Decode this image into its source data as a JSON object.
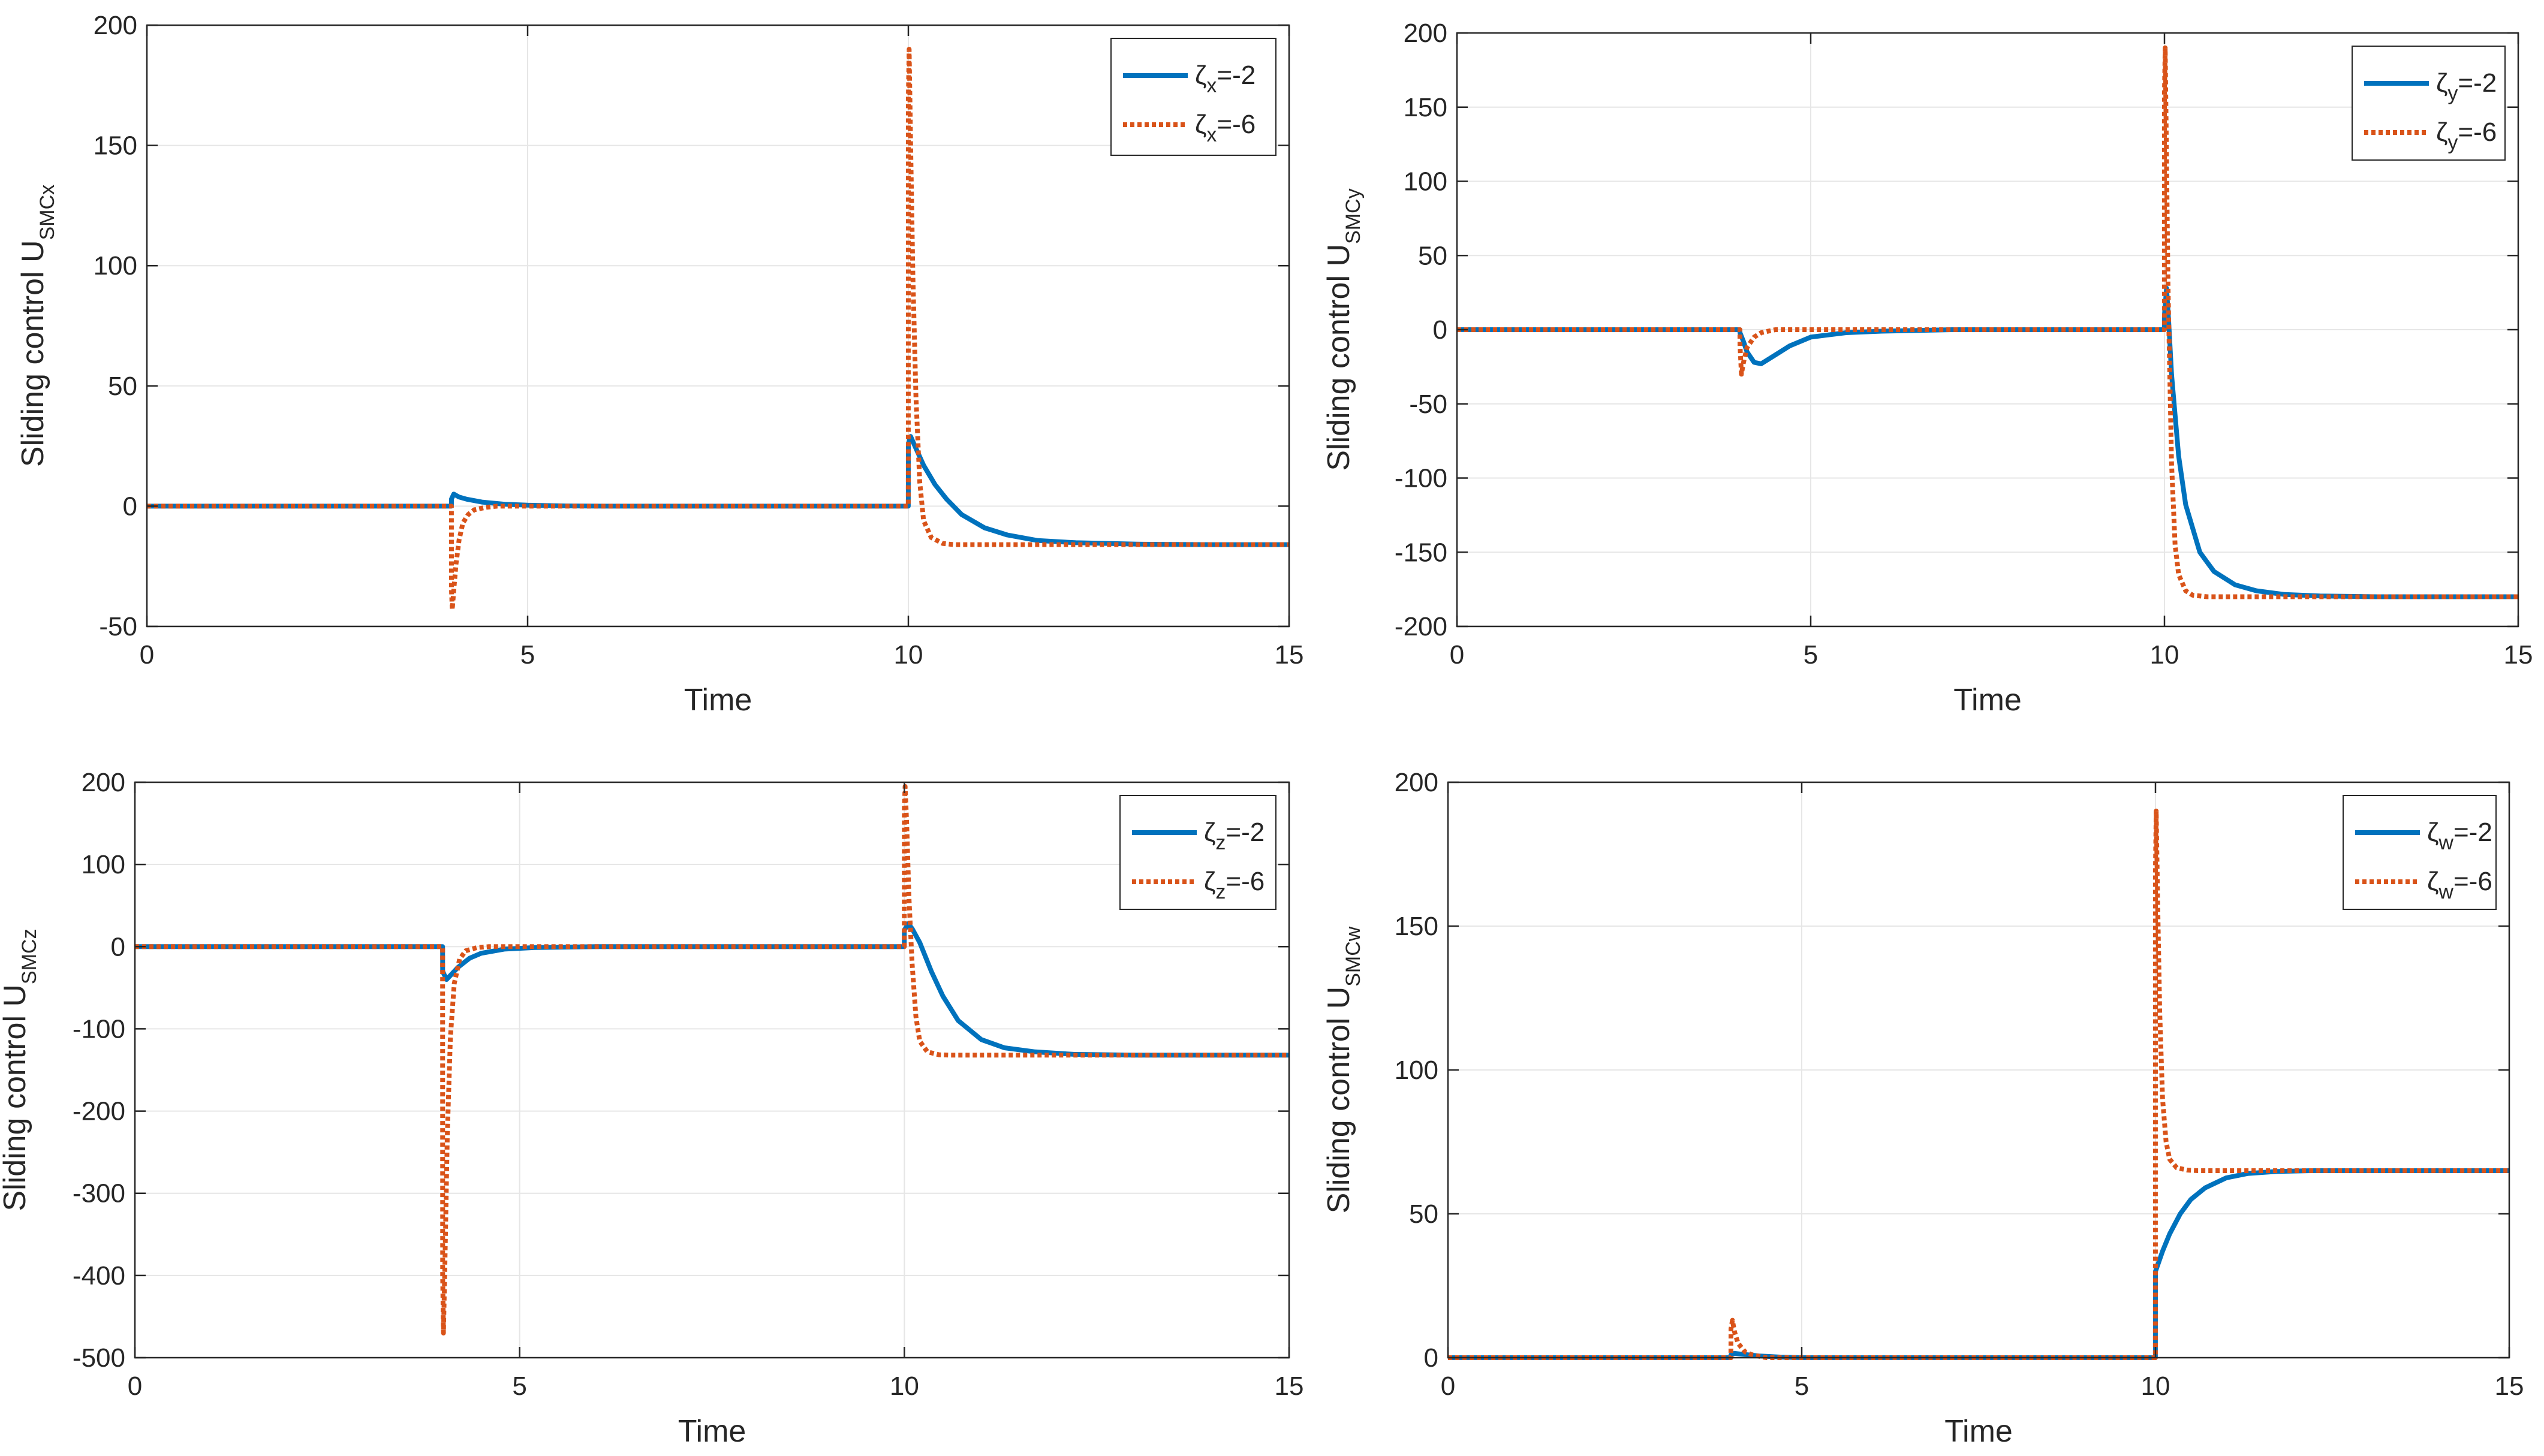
{
  "colors": {
    "series1": "#0072BD",
    "series2": "#D95319",
    "grid": "#e6e6e6",
    "axis": "#262626"
  },
  "chart_data": [
    {
      "type": "line",
      "xlabel": "Time",
      "ylabel": {
        "main": "Sliding control U",
        "sub": "SMCx"
      },
      "xlim": [
        0,
        15
      ],
      "ylim": [
        -50,
        200
      ],
      "xticks": [
        0,
        5,
        10,
        15
      ],
      "yticks": [
        -50,
        0,
        50,
        100,
        150,
        200
      ],
      "legend_position": "top-right",
      "series": [
        {
          "name": "ζx=-2",
          "legend": {
            "symbol": "ζ",
            "sub": "x",
            "text": "=-2"
          },
          "style": "solid",
          "x": [
            0,
            3.999,
            4.0,
            4.03,
            4.1,
            4.2,
            4.4,
            4.7,
            5.0,
            5.5,
            6,
            7,
            8,
            9.999,
            10.0,
            10.03,
            10.1,
            10.2,
            10.35,
            10.5,
            10.7,
            11.0,
            11.3,
            11.7,
            12.2,
            13,
            14,
            15
          ],
          "values": [
            0,
            0,
            3,
            5,
            3.8,
            2.9,
            1.7,
            0.8,
            0.4,
            0.1,
            0,
            0,
            0,
            0,
            26,
            29,
            24,
            17,
            9,
            3,
            -3.5,
            -9,
            -12,
            -14.3,
            -15.2,
            -15.8,
            -16,
            -16
          ]
        },
        {
          "name": "ζx=-6",
          "legend": {
            "symbol": "ζ",
            "sub": "x",
            "text": "=-6"
          },
          "style": "dotted",
          "x": [
            0,
            3.999,
            4.0,
            4.01,
            4.03,
            4.06,
            4.1,
            4.15,
            4.22,
            4.3,
            4.45,
            4.6,
            5.0,
            6,
            8,
            9.999,
            10.0,
            10.01,
            10.03,
            10.06,
            10.1,
            10.15,
            10.2,
            10.3,
            10.45,
            10.6,
            11,
            12,
            15
          ],
          "values": [
            0,
            0,
            -35,
            -43,
            -35,
            -24,
            -14,
            -7,
            -3.5,
            -1.5,
            -0.5,
            0,
            0,
            0,
            0,
            0,
            170,
            190,
            150,
            95,
            45,
            10,
            -6,
            -13,
            -15.5,
            -16,
            -16,
            -16,
            -16
          ]
        }
      ]
    },
    {
      "type": "line",
      "xlabel": "Time",
      "ylabel": {
        "main": "Sliding control U",
        "sub": "SMCy"
      },
      "xlim": [
        0,
        15
      ],
      "ylim": [
        -200,
        200
      ],
      "xticks": [
        0,
        5,
        10,
        15
      ],
      "yticks": [
        -200,
        -150,
        -100,
        -50,
        0,
        50,
        100,
        150,
        200
      ],
      "legend_position": "top-right",
      "series": [
        {
          "name": "ζy=-2",
          "legend": {
            "symbol": "ζ",
            "sub": "y",
            "text": "=-2"
          },
          "style": "solid",
          "x": [
            0,
            3.999,
            4.0,
            4.05,
            4.1,
            4.2,
            4.3,
            4.5,
            4.7,
            5.0,
            5.5,
            6,
            7,
            9.999,
            10.0,
            10.03,
            10.06,
            10.1,
            10.2,
            10.3,
            10.5,
            10.7,
            11.0,
            11.3,
            11.7,
            12.2,
            13,
            14,
            15
          ],
          "values": [
            0,
            0,
            -2,
            -8,
            -15,
            -22,
            -23,
            -17,
            -11,
            -5,
            -2,
            -1,
            0,
            0,
            10,
            28,
            5,
            -30,
            -85,
            -118,
            -150,
            -163,
            -172,
            -176,
            -178.5,
            -179.5,
            -180,
            -180,
            -180
          ]
        },
        {
          "name": "ζy=-6",
          "legend": {
            "symbol": "ζ",
            "sub": "y",
            "text": "=-6"
          },
          "style": "dotted",
          "x": [
            0,
            3.999,
            4.0,
            4.02,
            4.05,
            4.1,
            4.2,
            4.3,
            4.5,
            5.0,
            9.999,
            10.0,
            10.01,
            10.02,
            10.05,
            10.1,
            10.15,
            10.2,
            10.3,
            10.4,
            10.6,
            11,
            15
          ],
          "values": [
            0,
            0,
            -10,
            -30,
            -22,
            -12,
            -5,
            -2,
            0,
            0,
            0,
            160,
            190,
            150,
            30,
            -90,
            -145,
            -165,
            -176,
            -179,
            -180,
            -180,
            -180
          ]
        }
      ]
    },
    {
      "type": "line",
      "xlabel": "Time",
      "ylabel": {
        "main": "Sliding control U",
        "sub": "SMCz"
      },
      "xlim": [
        0,
        15
      ],
      "ylim": [
        -500,
        200
      ],
      "xticks": [
        0,
        5,
        10,
        15
      ],
      "yticks": [
        -500,
        -400,
        -300,
        -200,
        -100,
        0,
        100,
        200
      ],
      "legend_position": "top-right",
      "series": [
        {
          "name": "ζz=-2",
          "legend": {
            "symbol": "ζ",
            "sub": "z",
            "text": "=-2"
          },
          "style": "solid",
          "x": [
            0,
            3.999,
            4.0,
            4.05,
            4.1,
            4.2,
            4.35,
            4.5,
            4.8,
            5.2,
            6,
            9.999,
            10.0,
            10.05,
            10.1,
            10.2,
            10.35,
            10.5,
            10.7,
            11.0,
            11.3,
            11.7,
            12.2,
            13,
            15
          ],
          "values": [
            0,
            0,
            -30,
            -40,
            -35,
            -25,
            -14,
            -8,
            -3,
            -1,
            0,
            0,
            20,
            28,
            22,
            5,
            -30,
            -60,
            -90,
            -113,
            -123,
            -128,
            -131,
            -132,
            -132
          ]
        },
        {
          "name": "ζz=-6",
          "legend": {
            "symbol": "ζ",
            "sub": "z",
            "text": "=-6"
          },
          "style": "dotted",
          "x": [
            0,
            3.999,
            4.0,
            4.01,
            4.03,
            4.06,
            4.1,
            4.15,
            4.22,
            4.3,
            4.45,
            4.6,
            5.0,
            9.999,
            10.0,
            10.01,
            10.03,
            10.06,
            10.1,
            10.15,
            10.2,
            10.3,
            10.45,
            10.6,
            11,
            15
          ],
          "values": [
            0,
            0,
            -400,
            -470,
            -380,
            -230,
            -110,
            -45,
            -15,
            -5,
            -1,
            0,
            0,
            0,
            170,
            195,
            150,
            60,
            -20,
            -85,
            -115,
            -128,
            -131.5,
            -132,
            -132,
            -132
          ]
        }
      ]
    },
    {
      "type": "line",
      "xlabel": "Time",
      "ylabel": {
        "main": "Sliding control U",
        "sub": "SMCw"
      },
      "xlim": [
        0,
        15
      ],
      "ylim": [
        0,
        200
      ],
      "xticks": [
        0,
        5,
        10,
        15
      ],
      "yticks": [
        0,
        50,
        100,
        150,
        200
      ],
      "legend_position": "top-right",
      "series": [
        {
          "name": "ζw=-2",
          "legend": {
            "symbol": "ζ",
            "sub": "w",
            "text": "=-2"
          },
          "style": "solid",
          "x": [
            0,
            3.999,
            4.0,
            4.05,
            4.2,
            4.4,
            4.7,
            5.0,
            9.999,
            10.0,
            10.1,
            10.2,
            10.35,
            10.5,
            10.7,
            11.0,
            11.3,
            11.7,
            12.2,
            13,
            14,
            15
          ],
          "values": [
            0,
            0,
            1,
            1.5,
            1.1,
            0.6,
            0.2,
            0,
            0,
            30,
            37,
            43,
            50,
            55,
            59,
            62.5,
            64,
            64.7,
            65,
            65,
            65,
            65
          ]
        },
        {
          "name": "ζw=-6",
          "legend": {
            "symbol": "ζ",
            "sub": "w",
            "text": "=-6"
          },
          "style": "dotted",
          "x": [
            0,
            3.999,
            4.0,
            4.02,
            4.05,
            4.1,
            4.2,
            4.3,
            4.5,
            5.0,
            9.999,
            10.0,
            10.01,
            10.03,
            10.06,
            10.1,
            10.15,
            10.2,
            10.3,
            10.45,
            10.6,
            11,
            15
          ],
          "values": [
            0,
            0,
            10,
            13,
            9,
            5,
            2,
            1,
            0,
            0,
            0,
            170,
            190,
            160,
            120,
            90,
            75,
            69,
            66,
            65.2,
            65,
            65,
            65
          ]
        }
      ]
    }
  ]
}
